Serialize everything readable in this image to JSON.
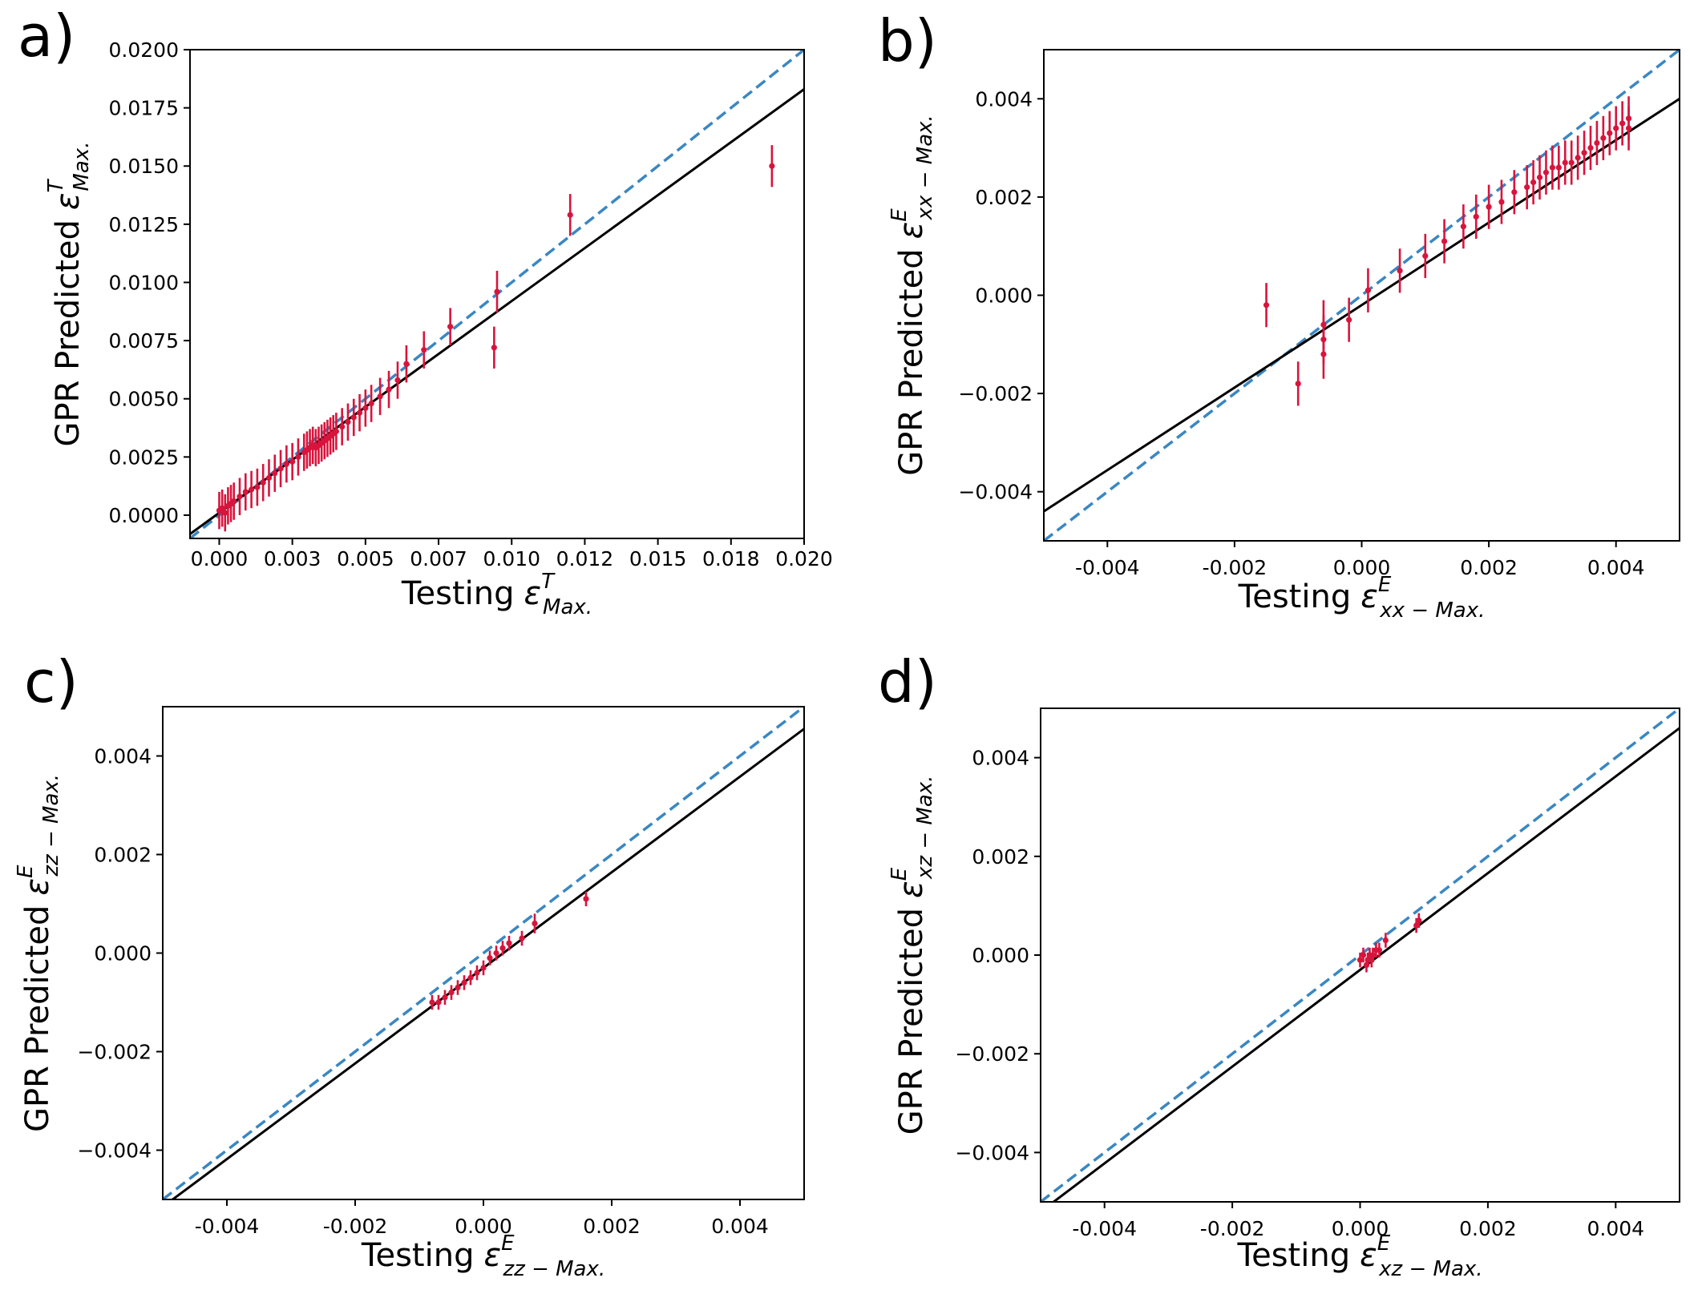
{
  "chart_data": [
    {
      "type": "scatter",
      "panel_label": "a)",
      "xlabel": "Testing",
      "ylabel": "GPR Predicted",
      "symbol": "ε",
      "sup": "T",
      "sub": "Max.",
      "xlim": [
        -0.001,
        0.02
      ],
      "ylim": [
        -0.001,
        0.02
      ],
      "xticks": [
        0.0,
        0.0025,
        0.005,
        0.0075,
        0.01,
        0.0125,
        0.015,
        0.0175,
        0.02
      ],
      "xtick_labels": [
        "0.000",
        "0.003",
        "0.005",
        "0.007",
        "0.010",
        "0.012",
        "0.015",
        "0.018",
        "0.020"
      ],
      "yticks": [
        0.0,
        0.0025,
        0.005,
        0.0075,
        0.01,
        0.0125,
        0.015,
        0.0175,
        0.02
      ],
      "ytick_labels": [
        "0.0000",
        "0.0025",
        "0.0050",
        "0.0075",
        "0.0100",
        "0.0125",
        "0.0150",
        "0.0175",
        "0.0200"
      ],
      "identity_line": {
        "style": "dashed",
        "color": "#3a87c2"
      },
      "fit_line": {
        "slope": 0.91,
        "intercept": 0.0001,
        "color": "#000000"
      },
      "points": {
        "x": [
          0.0,
          0.0001,
          0.0002,
          0.0003,
          0.0004,
          0.0005,
          0.0007,
          0.0009,
          0.0011,
          0.0013,
          0.0015,
          0.0017,
          0.0019,
          0.0021,
          0.0023,
          0.0025,
          0.0027,
          0.0029,
          0.003,
          0.0031,
          0.0032,
          0.0033,
          0.0034,
          0.0035,
          0.0036,
          0.0037,
          0.0038,
          0.0039,
          0.004,
          0.0042,
          0.0044,
          0.0046,
          0.0048,
          0.005,
          0.0052,
          0.0055,
          0.0058,
          0.0061,
          0.0064,
          0.007,
          0.0079,
          0.0094,
          0.0095,
          0.012,
          0.0189
        ],
        "y": [
          0.0002,
          0.0003,
          0.0001,
          0.0004,
          0.0005,
          0.0006,
          0.0008,
          0.001,
          0.0011,
          0.0012,
          0.0014,
          0.0016,
          0.0018,
          0.002,
          0.0022,
          0.0023,
          0.0025,
          0.0027,
          0.0028,
          0.0029,
          0.003,
          0.0029,
          0.003,
          0.0031,
          0.0032,
          0.0033,
          0.0034,
          0.0035,
          0.0036,
          0.0038,
          0.004,
          0.0042,
          0.0044,
          0.0046,
          0.0048,
          0.0051,
          0.0054,
          0.0058,
          0.0065,
          0.0071,
          0.0081,
          0.0072,
          0.0096,
          0.0129,
          0.015
        ],
        "err": [
          0.0008,
          0.0008,
          0.0008,
          0.0008,
          0.0008,
          0.0008,
          0.0008,
          0.0008,
          0.0008,
          0.0008,
          0.0008,
          0.0008,
          0.0008,
          0.0008,
          0.0008,
          0.0008,
          0.0008,
          0.0008,
          0.0008,
          0.0008,
          0.0008,
          0.0008,
          0.0008,
          0.0008,
          0.0008,
          0.0008,
          0.0008,
          0.0008,
          0.0008,
          0.0008,
          0.0008,
          0.0008,
          0.0008,
          0.0008,
          0.0008,
          0.0008,
          0.0008,
          0.0008,
          0.0008,
          0.0008,
          0.0008,
          0.0009,
          0.0009,
          0.0009,
          0.0009
        ]
      }
    },
    {
      "type": "scatter",
      "panel_label": "b)",
      "xlabel": "Testing",
      "ylabel": "GPR Predicted",
      "symbol": "ε",
      "sup": "E",
      "sub": "xx − Max.",
      "xlim": [
        -0.005,
        0.005
      ],
      "ylim": [
        -0.005,
        0.005
      ],
      "xticks": [
        -0.004,
        -0.002,
        0.0,
        0.002,
        0.004
      ],
      "xtick_labels": [
        "-0.004",
        "-0.002",
        "0.000",
        "0.002",
        "0.004"
      ],
      "yticks": [
        -0.004,
        -0.002,
        0.0,
        0.002,
        0.004
      ],
      "ytick_labels": [
        "−0.004",
        "−0.002",
        "0.000",
        "0.002",
        "0.004"
      ],
      "identity_line": {
        "style": "dashed",
        "color": "#3a87c2"
      },
      "fit_line": {
        "slope": 0.84,
        "intercept": -0.0002,
        "color": "#000000"
      },
      "points": {
        "x": [
          -0.0015,
          -0.001,
          -0.0006,
          -0.0006,
          -0.0006,
          -0.0002,
          0.0001,
          0.0006,
          0.001,
          0.0013,
          0.0016,
          0.0018,
          0.002,
          0.0022,
          0.0024,
          0.0026,
          0.0027,
          0.0028,
          0.0029,
          0.003,
          0.0031,
          0.0032,
          0.0033,
          0.0034,
          0.0035,
          0.0036,
          0.0037,
          0.0038,
          0.0039,
          0.004,
          0.0041,
          0.0042,
          0.0042
        ],
        "y": [
          -0.0002,
          -0.0018,
          -0.0012,
          -0.0009,
          -0.0006,
          -0.0005,
          0.0001,
          0.0005,
          0.0008,
          0.0011,
          0.0014,
          0.0016,
          0.0018,
          0.0019,
          0.0021,
          0.0022,
          0.0023,
          0.0024,
          0.0025,
          0.0026,
          0.0026,
          0.0027,
          0.0027,
          0.0028,
          0.0029,
          0.003,
          0.0031,
          0.0032,
          0.0033,
          0.0034,
          0.0035,
          0.0036,
          0.0034
        ],
        "err": [
          0.00045,
          0.00045,
          0.0005,
          0.0005,
          0.0005,
          0.00045,
          0.00045,
          0.00045,
          0.00045,
          0.00045,
          0.00045,
          0.00045,
          0.00045,
          0.00045,
          0.00045,
          0.00045,
          0.00045,
          0.00045,
          0.00045,
          0.00045,
          0.00045,
          0.00045,
          0.00045,
          0.00045,
          0.00045,
          0.00045,
          0.00045,
          0.00045,
          0.00045,
          0.00045,
          0.00045,
          0.00045,
          0.00045
        ]
      }
    },
    {
      "type": "scatter",
      "panel_label": "c)",
      "xlabel": "Testing",
      "ylabel": "GPR Predicted",
      "symbol": "ε",
      "sup": "E",
      "sub": "zz − Max.",
      "xlim": [
        -0.005,
        0.005
      ],
      "ylim": [
        -0.005,
        0.005
      ],
      "xticks": [
        -0.004,
        -0.002,
        0.0,
        0.002,
        0.004
      ],
      "xtick_labels": [
        "-0.004",
        "-0.002",
        "0.000",
        "0.002",
        "0.004"
      ],
      "yticks": [
        -0.004,
        -0.002,
        0.0,
        0.002,
        0.004
      ],
      "ytick_labels": [
        "−0.004",
        "−0.002",
        "0.000",
        "0.002",
        "0.004"
      ],
      "identity_line": {
        "style": "dashed",
        "color": "#3a87c2"
      },
      "fit_line": {
        "slope": 0.97,
        "intercept": -0.0003,
        "color": "#000000"
      },
      "points": {
        "x": [
          -0.0008,
          -0.0007,
          -0.0006,
          -0.0005,
          -0.0004,
          -0.0003,
          -0.0002,
          -0.0001,
          0.0,
          0.0001,
          0.0002,
          0.0003,
          0.0004,
          0.0006,
          0.0008,
          0.0016
        ],
        "y": [
          -0.001,
          -0.001,
          -0.0009,
          -0.0008,
          -0.0007,
          -0.0006,
          -0.0005,
          -0.0004,
          -0.0003,
          -0.0001,
          0.0,
          0.0001,
          0.0002,
          0.0003,
          0.0006,
          0.0011
        ],
        "err": [
          0.00015,
          0.00015,
          0.00015,
          0.00015,
          0.00015,
          0.00015,
          0.00015,
          0.00015,
          0.00015,
          0.00015,
          0.00015,
          0.00015,
          0.00015,
          0.00015,
          0.0002,
          0.00015
        ]
      }
    },
    {
      "type": "scatter",
      "panel_label": "d)",
      "xlabel": "Testing",
      "ylabel": "GPR Predicted",
      "symbol": "ε",
      "sup": "E",
      "sub": "xz − Max.",
      "xlim": [
        -0.005,
        0.005
      ],
      "ylim": [
        -0.005,
        0.005
      ],
      "xticks": [
        -0.004,
        -0.002,
        0.0,
        0.002,
        0.004
      ],
      "xtick_labels": [
        "-0.004",
        "-0.002",
        "0.000",
        "0.002",
        "0.004"
      ],
      "yticks": [
        -0.004,
        -0.002,
        0.0,
        0.002,
        0.004
      ],
      "ytick_labels": [
        "−0.004",
        "−0.002",
        "0.000",
        "0.002",
        "0.004"
      ],
      "identity_line": {
        "style": "dashed",
        "color": "#3a87c2"
      },
      "fit_line": {
        "slope": 0.98,
        "intercept": -0.0003,
        "color": "#000000"
      },
      "points": {
        "x": [
          0.0,
          5e-05,
          0.0001,
          0.00012,
          0.00015,
          0.00018,
          0.0002,
          0.00025,
          0.0003,
          0.0004,
          0.00088,
          0.00092
        ],
        "y": [
          -0.0001,
          0.0,
          -0.0002,
          -0.0001,
          0.0,
          -0.0001,
          0.0,
          0.0001,
          0.0001,
          0.0003,
          0.0006,
          0.0007
        ],
        "err": [
          0.00015,
          0.00015,
          0.00015,
          0.00015,
          0.00015,
          0.00015,
          0.00015,
          0.00015,
          0.00015,
          0.00015,
          0.00015,
          0.00015
        ]
      }
    }
  ]
}
